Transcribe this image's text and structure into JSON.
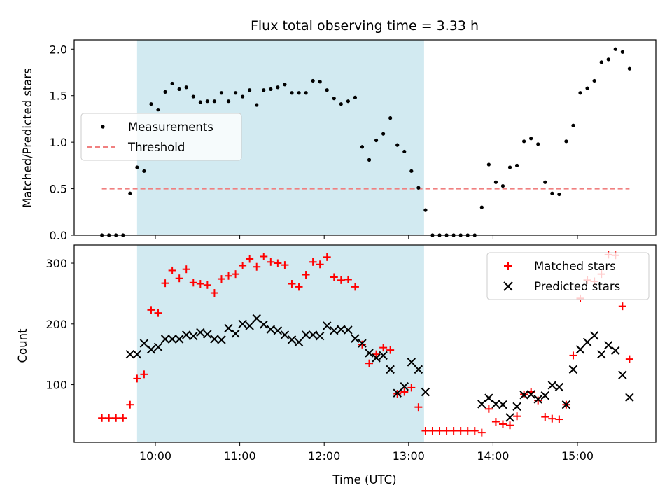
{
  "chart_data": {
    "type": "scatter",
    "title": "Flux total observing time = 3.33 h",
    "xlabel": "Time (UTC)",
    "x_ticks": [
      "10:00",
      "11:00",
      "12:00",
      "13:00",
      "14:00",
      "15:00"
    ],
    "shaded_interval": {
      "x_start": "09:47",
      "x_end": "13:11",
      "color": "#add8e6"
    },
    "panels": [
      {
        "ylabel": "Matched/Predicted stars",
        "ylim": [
          0,
          2.1
        ],
        "y_ticks": [
          "0.0",
          "0.5",
          "1.0",
          "1.5",
          "2.0"
        ],
        "legend_position": "center-left",
        "series": [
          {
            "name": "Measurements",
            "marker": "dot",
            "color": "#000000",
            "points": [
              [
                "09:22",
                0.0
              ],
              [
                "09:27",
                0.0
              ],
              [
                "09:32",
                0.0
              ],
              [
                "09:37",
                0.0
              ],
              [
                "09:42",
                0.45
              ],
              [
                "09:47",
                0.73
              ],
              [
                "09:52",
                0.69
              ],
              [
                "09:57",
                1.41
              ],
              [
                "10:02",
                1.35
              ],
              [
                "10:07",
                1.54
              ],
              [
                "10:12",
                1.63
              ],
              [
                "10:17",
                1.57
              ],
              [
                "10:22",
                1.59
              ],
              [
                "10:27",
                1.49
              ],
              [
                "10:32",
                1.43
              ],
              [
                "10:37",
                1.44
              ],
              [
                "10:42",
                1.44
              ],
              [
                "10:47",
                1.53
              ],
              [
                "10:52",
                1.44
              ],
              [
                "10:57",
                1.53
              ],
              [
                "11:02",
                1.49
              ],
              [
                "11:07",
                1.56
              ],
              [
                "11:12",
                1.4
              ],
              [
                "11:17",
                1.56
              ],
              [
                "11:22",
                1.57
              ],
              [
                "11:27",
                1.59
              ],
              [
                "11:32",
                1.62
              ],
              [
                "11:37",
                1.53
              ],
              [
                "11:42",
                1.53
              ],
              [
                "11:47",
                1.53
              ],
              [
                "11:52",
                1.66
              ],
              [
                "11:57",
                1.65
              ],
              [
                "12:02",
                1.56
              ],
              [
                "12:07",
                1.47
              ],
              [
                "12:12",
                1.41
              ],
              [
                "12:17",
                1.44
              ],
              [
                "12:22",
                1.48
              ],
              [
                "12:27",
                0.95
              ],
              [
                "12:32",
                0.81
              ],
              [
                "12:37",
                1.02
              ],
              [
                "12:42",
                1.09
              ],
              [
                "12:47",
                1.26
              ],
              [
                "12:52",
                0.97
              ],
              [
                "12:57",
                0.9
              ],
              [
                "13:02",
                0.69
              ],
              [
                "13:07",
                0.51
              ],
              [
                "13:12",
                0.27
              ],
              [
                "13:17",
                0.0
              ],
              [
                "13:22",
                0.0
              ],
              [
                "13:27",
                0.0
              ],
              [
                "13:32",
                0.0
              ],
              [
                "13:37",
                0.0
              ],
              [
                "13:42",
                0.0
              ],
              [
                "13:47",
                0.0
              ],
              [
                "13:52",
                0.3
              ],
              [
                "13:57",
                0.76
              ],
              [
                "14:02",
                0.57
              ],
              [
                "14:07",
                0.53
              ],
              [
                "14:12",
                0.73
              ],
              [
                "14:17",
                0.75
              ],
              [
                "14:22",
                1.01
              ],
              [
                "14:27",
                1.04
              ],
              [
                "14:32",
                0.98
              ],
              [
                "14:37",
                0.57
              ],
              [
                "14:42",
                0.45
              ],
              [
                "14:47",
                0.44
              ],
              [
                "14:52",
                1.01
              ],
              [
                "14:57",
                1.18
              ],
              [
                "15:02",
                1.53
              ],
              [
                "15:07",
                1.58
              ],
              [
                "15:12",
                1.66
              ],
              [
                "15:17",
                1.86
              ],
              [
                "15:22",
                1.89
              ],
              [
                "15:27",
                2.0
              ],
              [
                "15:32",
                1.97
              ],
              [
                "15:37",
                1.79
              ]
            ]
          },
          {
            "name": "Threshold",
            "marker": "dashed-line",
            "color": "#f08080",
            "points": [
              [
                "09:22",
                0.5
              ],
              [
                "15:37",
                0.5
              ]
            ]
          }
        ]
      },
      {
        "ylabel": "Count",
        "ylim": [
          5,
          330
        ],
        "y_ticks": [
          "100",
          "200",
          "300"
        ],
        "legend_position": "upper-right",
        "series": [
          {
            "name": "Matched stars",
            "marker": "plus",
            "color": "#ff0000",
            "points": [
              [
                "09:22",
                45
              ],
              [
                "09:27",
                45
              ],
              [
                "09:32",
                45
              ],
              [
                "09:37",
                45
              ],
              [
                "09:42",
                67
              ],
              [
                "09:47",
                110
              ],
              [
                "09:52",
                117
              ],
              [
                "09:57",
                223
              ],
              [
                "10:02",
                218
              ],
              [
                "10:07",
                267
              ],
              [
                "10:12",
                288
              ],
              [
                "10:17",
                275
              ],
              [
                "10:22",
                290
              ],
              [
                "10:27",
                268
              ],
              [
                "10:32",
                266
              ],
              [
                "10:37",
                264
              ],
              [
                "10:42",
                251
              ],
              [
                "10:47",
                274
              ],
              [
                "10:52",
                279
              ],
              [
                "10:57",
                282
              ],
              [
                "11:02",
                296
              ],
              [
                "11:07",
                307
              ],
              [
                "11:12",
                294
              ],
              [
                "11:17",
                311
              ],
              [
                "11:22",
                302
              ],
              [
                "11:27",
                300
              ],
              [
                "11:32",
                297
              ],
              [
                "11:37",
                266
              ],
              [
                "11:42",
                261
              ],
              [
                "11:47",
                281
              ],
              [
                "11:52",
                302
              ],
              [
                "11:57",
                298
              ],
              [
                "12:02",
                310
              ],
              [
                "12:07",
                277
              ],
              [
                "12:12",
                272
              ],
              [
                "12:17",
                273
              ],
              [
                "12:22",
                261
              ],
              [
                "12:27",
                166
              ],
              [
                "12:32",
                135
              ],
              [
                "12:37",
                150
              ],
              [
                "12:42",
                161
              ],
              [
                "12:47",
                157
              ],
              [
                "12:52",
                85
              ],
              [
                "12:57",
                88
              ],
              [
                "13:02",
                95
              ],
              [
                "13:07",
                63
              ],
              [
                "13:12",
                24
              ],
              [
                "13:17",
                24
              ],
              [
                "13:22",
                24
              ],
              [
                "13:27",
                24
              ],
              [
                "13:32",
                24
              ],
              [
                "13:37",
                24
              ],
              [
                "13:42",
                24
              ],
              [
                "13:47",
                24
              ],
              [
                "13:52",
                21
              ],
              [
                "13:57",
                60
              ],
              [
                "14:02",
                39
              ],
              [
                "14:07",
                35
              ],
              [
                "14:12",
                33
              ],
              [
                "14:17",
                48
              ],
              [
                "14:22",
                84
              ],
              [
                "14:27",
                88
              ],
              [
                "14:32",
                74
              ],
              [
                "14:37",
                47
              ],
              [
                "14:42",
                44
              ],
              [
                "14:47",
                43
              ],
              [
                "14:52",
                67
              ],
              [
                "14:57",
                148
              ],
              [
                "15:02",
                242
              ],
              [
                "15:07",
                272
              ],
              [
                "15:12",
                270
              ],
              [
                "15:17",
                282
              ],
              [
                "15:22",
                314
              ],
              [
                "15:27",
                313
              ],
              [
                "15:32",
                229
              ],
              [
                "15:37",
                142
              ]
            ]
          },
          {
            "name": "Predicted stars",
            "marker": "x",
            "color": "#000000",
            "points": [
              [
                "09:42",
                150
              ],
              [
                "09:47",
                150
              ],
              [
                "09:52",
                168
              ],
              [
                "09:57",
                158
              ],
              [
                "10:02",
                162
              ],
              [
                "10:07",
                175
              ],
              [
                "10:12",
                175
              ],
              [
                "10:17",
                175
              ],
              [
                "10:22",
                182
              ],
              [
                "10:27",
                180
              ],
              [
                "10:32",
                186
              ],
              [
                "10:37",
                183
              ],
              [
                "10:42",
                175
              ],
              [
                "10:47",
                174
              ],
              [
                "10:52",
                193
              ],
              [
                "10:57",
                184
              ],
              [
                "11:02",
                200
              ],
              [
                "11:07",
                197
              ],
              [
                "11:12",
                209
              ],
              [
                "11:17",
                199
              ],
              [
                "11:22",
                191
              ],
              [
                "11:27",
                189
              ],
              [
                "11:32",
                182
              ],
              [
                "11:37",
                174
              ],
              [
                "11:42",
                170
              ],
              [
                "11:47",
                182
              ],
              [
                "11:52",
                182
              ],
              [
                "11:57",
                180
              ],
              [
                "12:02",
                197
              ],
              [
                "12:07",
                189
              ],
              [
                "12:12",
                191
              ],
              [
                "12:17",
                190
              ],
              [
                "12:22",
                176
              ],
              [
                "12:27",
                168
              ],
              [
                "12:32",
                152
              ],
              [
                "12:37",
                144
              ],
              [
                "12:42",
                148
              ],
              [
                "12:47",
                125
              ],
              [
                "12:52",
                86
              ],
              [
                "12:57",
                97
              ],
              [
                "13:02",
                137
              ],
              [
                "13:07",
                125
              ],
              [
                "13:12",
                88
              ],
              [
                "13:52",
                68
              ],
              [
                "13:57",
                78
              ],
              [
                "14:02",
                68
              ],
              [
                "14:07",
                67
              ],
              [
                "14:12",
                46
              ],
              [
                "14:17",
                64
              ],
              [
                "14:22",
                83
              ],
              [
                "14:27",
                84
              ],
              [
                "14:32",
                76
              ],
              [
                "14:37",
                82
              ],
              [
                "14:42",
                99
              ],
              [
                "14:47",
                96
              ],
              [
                "14:52",
                67
              ],
              [
                "14:57",
                125
              ],
              [
                "15:02",
                158
              ],
              [
                "15:07",
                170
              ],
              [
                "15:12",
                181
              ],
              [
                "15:17",
                150
              ],
              [
                "15:22",
                165
              ],
              [
                "15:27",
                156
              ],
              [
                "15:32",
                116
              ],
              [
                "15:37",
                79
              ]
            ]
          }
        ]
      }
    ]
  }
}
